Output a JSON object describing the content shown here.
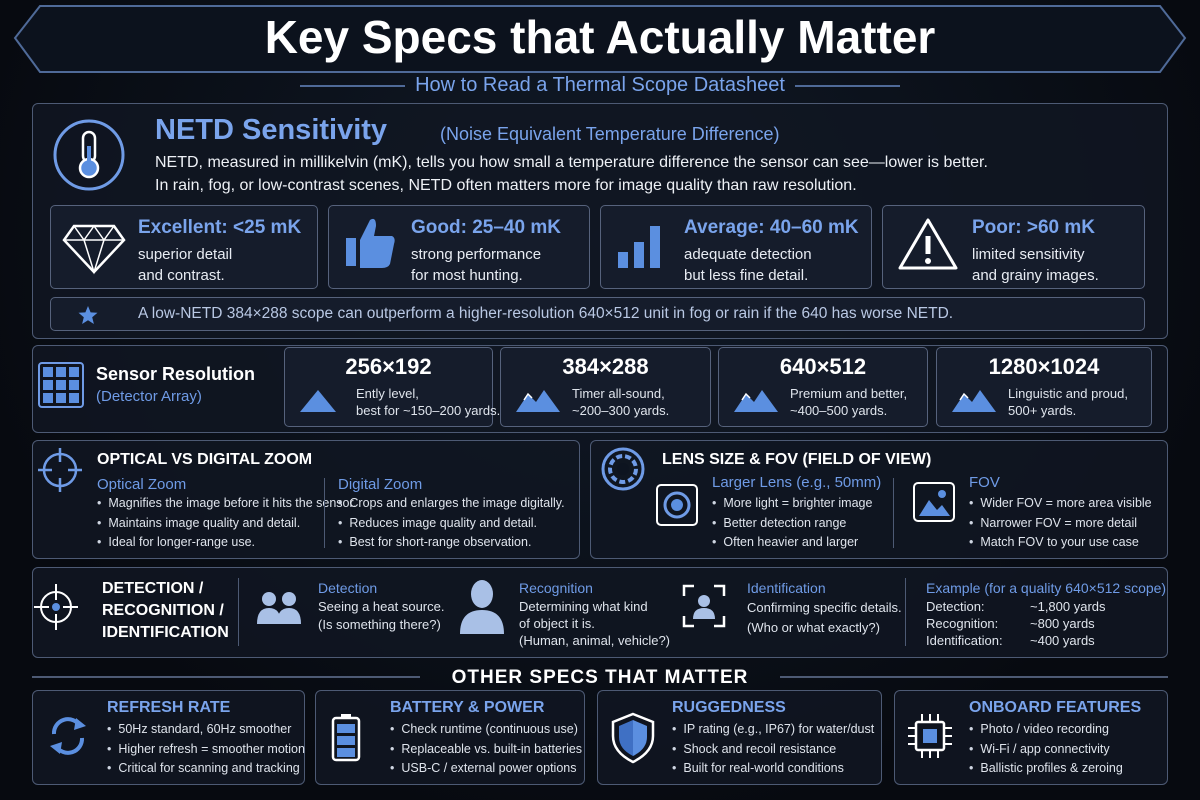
{
  "header": {
    "title": "Key Specs that Actually Matter",
    "subtitle": "How to Read a Thermal Scope Datasheet"
  },
  "netd": {
    "title": "NETD Sensitivity",
    "subtitle": "(Noise Equivalent Temperature Difference)",
    "description": [
      "NETD, measured in millikelvin (mK), tells you how small a temperature difference the sensor can see—lower is better.",
      "In rain, fog, or low-contrast scenes, NETD often matters more for image quality than raw resolution."
    ],
    "levels": [
      {
        "label": "Excellent: <25 mK",
        "lines": [
          "superior detail",
          "and contrast."
        ]
      },
      {
        "label": "Good: 25–40 mK",
        "lines": [
          "strong performance",
          "for most hunting."
        ]
      },
      {
        "label": "Average: 40–60 mK",
        "lines": [
          "adequate detection",
          "but less fine detail."
        ]
      },
      {
        "label": "Poor: >60 mK",
        "lines": [
          "limited sensitivity",
          "and grainy images."
        ]
      }
    ],
    "tip": "A low-NETD 384×288 scope can outperform a higher-resolution 640×512 unit in fog or rain if the 640 has worse NETD."
  },
  "resolution": {
    "title": "Sensor Resolution",
    "subtitle": "(Detector Array)",
    "tiers": [
      {
        "size": "256×192",
        "lines": [
          "Ently level,",
          "best for ~150–200 yards."
        ]
      },
      {
        "size": "384×288",
        "lines": [
          "Timer all-sound,",
          "~200–300 yards."
        ]
      },
      {
        "size": "640×512",
        "lines": [
          "Premium and better,",
          "~400–500 yards."
        ]
      },
      {
        "size": "1280×1024",
        "lines": [
          "Linguistic and proud,",
          "500+ yards."
        ]
      }
    ]
  },
  "zoom": {
    "title": "OPTICAL VS DIGITAL ZOOM",
    "columns": [
      {
        "heading": "Optical Zoom",
        "items": [
          "Magnifies the image before it hits the sensor.",
          "Maintains image quality and detail.",
          "Ideal for longer-range use."
        ]
      },
      {
        "heading": "Digital Zoom",
        "items": [
          "Crops and enlarges the image digitally.",
          "Reduces image quality and detail.",
          "Best for short-range observation."
        ]
      }
    ]
  },
  "lens": {
    "title": "LENS SIZE & FOV (FIELD OF VIEW)",
    "columns": [
      {
        "heading": "Larger Lens (e.g., 50mm)",
        "items": [
          "More light = brighter image",
          "Better detection range",
          "Often heavier and larger"
        ]
      },
      {
        "heading": "FOV",
        "items": [
          "Wider FOV = more area visible",
          "Narrower FOV = more detail",
          "Match FOV to your use case"
        ]
      }
    ]
  },
  "dri": {
    "title": [
      "DETECTION /",
      "RECOGNITION /",
      "IDENTIFICATION"
    ],
    "stages": [
      {
        "heading": "Detection",
        "lines": [
          "Seeing a heat source.",
          "(Is something there?)"
        ]
      },
      {
        "heading": "Recognition",
        "lines": [
          "Determining what kind",
          "of object it is.",
          "(Human, animal, vehicle?)"
        ]
      },
      {
        "heading": "Identification",
        "lines": [
          "Confirming specific details.",
          "(Who or what exactly?)"
        ]
      }
    ],
    "example": {
      "heading": "Example (for a quality 640×512 scope)",
      "rows": [
        [
          "Detection:",
          "~1,800 yards"
        ],
        [
          "Recognition:",
          "~800 yards"
        ],
        [
          "Identification:",
          "~400 yards"
        ]
      ]
    }
  },
  "other": {
    "title": "OTHER SPECS THAT MATTER",
    "cards": [
      {
        "title": "REFRESH RATE",
        "items": [
          "50Hz standard, 60Hz smoother",
          "Higher refresh = smoother motion",
          "Critical for scanning and tracking"
        ]
      },
      {
        "title": "BATTERY & POWER",
        "items": [
          "Check runtime (continuous use)",
          "Replaceable vs. built-in batteries",
          "USB-C / external power options"
        ]
      },
      {
        "title": "RUGGEDNESS",
        "items": [
          "IP rating (e.g., IP67) for water/dust",
          "Shock and recoil resistance",
          "Built for real-world conditions"
        ]
      },
      {
        "title": "ONBOARD FEATURES",
        "items": [
          "Photo / video recording",
          "Wi-Fi / app connectivity",
          "Ballistic profiles & zeroing"
        ]
      }
    ]
  }
}
